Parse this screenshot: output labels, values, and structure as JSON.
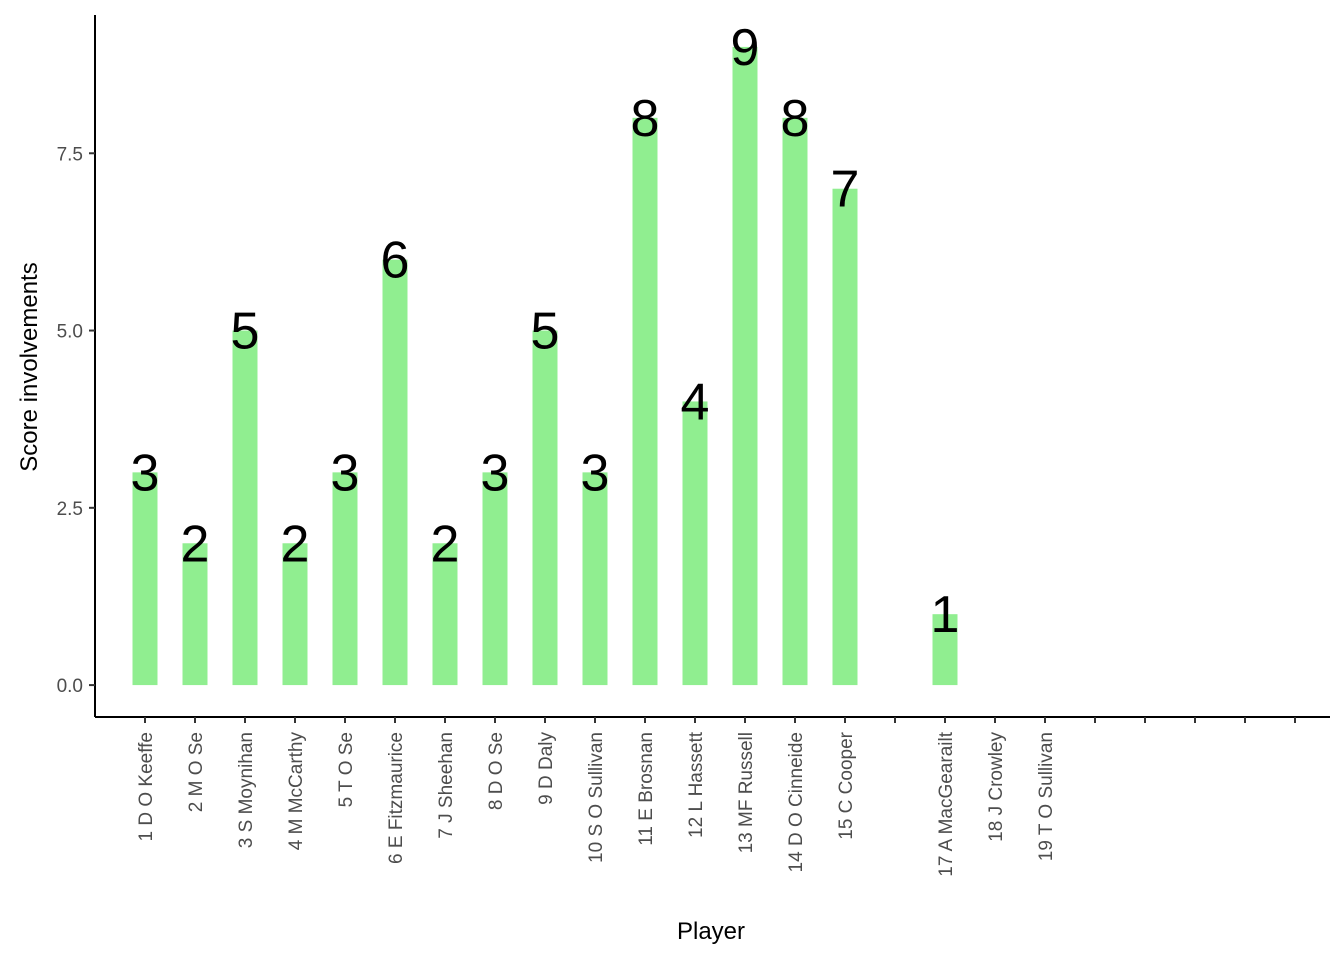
{
  "chart_data": {
    "type": "bar",
    "xlabel": "Player",
    "ylabel": "Score involvements",
    "categories": [
      "1 D O Keeffe",
      "2 M O Se",
      "3 S Moynihan",
      "4 M McCarthy",
      "5 T O Se",
      "6 E Fitzmaurice",
      "7 J Sheehan",
      "8 D O Se",
      "9 D Daly",
      "10 S O Sullivan",
      "11 E Brosnan",
      "12 L Hassett",
      "13 MF Russell",
      "14 D O Cinneide",
      "15 C Cooper",
      "",
      "17 A MacGearailt",
      "18 J Crowley",
      "19 T O Sullivan",
      "",
      "",
      "",
      "",
      ""
    ],
    "values": [
      3,
      2,
      5,
      2,
      3,
      6,
      2,
      3,
      5,
      3,
      8,
      4,
      9,
      8,
      7,
      null,
      1,
      null,
      null,
      null,
      null,
      null,
      null,
      null
    ],
    "data_labels": [
      "3",
      "2",
      "5",
      "2",
      "3",
      "6",
      "2",
      "3",
      "5",
      "3",
      "8",
      "4",
      "9",
      "8",
      "7",
      "",
      "1",
      "",
      "",
      "",
      "",
      "",
      "",
      ""
    ],
    "y_ticks": [
      0,
      2.5,
      5,
      7.5
    ],
    "y_tick_labels": [
      "0.0",
      "2.5",
      "5.0",
      "7.5"
    ],
    "ylim": [
      -0.45,
      9.45
    ],
    "bar_color": "#90EE90",
    "grid": false,
    "legend": "none"
  }
}
